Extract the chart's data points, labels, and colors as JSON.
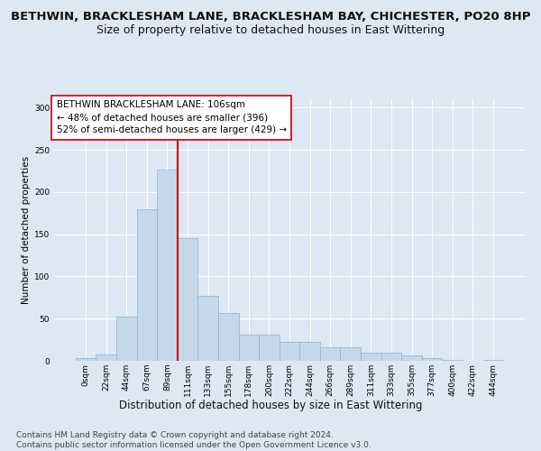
{
  "title": "BETHWIN, BRACKLESHAM LANE, BRACKLESHAM BAY, CHICHESTER, PO20 8HP",
  "subtitle": "Size of property relative to detached houses in East Wittering",
  "xlabel": "Distribution of detached houses by size in East Wittering",
  "ylabel": "Number of detached properties",
  "bar_color": "#c5d8ea",
  "bar_edge_color": "#8ab0cc",
  "background_color": "#dce8f4",
  "grid_color": "#ffffff",
  "fig_background": "#dce8f4",
  "bin_labels": [
    "0sqm",
    "22sqm",
    "44sqm",
    "67sqm",
    "89sqm",
    "111sqm",
    "133sqm",
    "155sqm",
    "178sqm",
    "200sqm",
    "222sqm",
    "244sqm",
    "266sqm",
    "289sqm",
    "311sqm",
    "333sqm",
    "355sqm",
    "377sqm",
    "400sqm",
    "422sqm",
    "444sqm"
  ],
  "bar_values": [
    3,
    7,
    52,
    180,
    227,
    145,
    77,
    57,
    31,
    31,
    22,
    22,
    16,
    16,
    10,
    10,
    6,
    3,
    1,
    0,
    1
  ],
  "property_line_x": 4.5,
  "property_line_color": "#cc0000",
  "annotation_text": "BETHWIN BRACKLESHAM LANE: 106sqm\n← 48% of detached houses are smaller (396)\n52% of semi-detached houses are larger (429) →",
  "annotation_box_color": "#ffffff",
  "annotation_box_edge": "#cc0000",
  "ylim": [
    0,
    310
  ],
  "yticks": [
    0,
    50,
    100,
    150,
    200,
    250,
    300
  ],
  "footnote": "Contains HM Land Registry data © Crown copyright and database right 2024.\nContains public sector information licensed under the Open Government Licence v3.0.",
  "title_fontsize": 9.5,
  "subtitle_fontsize": 9,
  "xlabel_fontsize": 8.5,
  "ylabel_fontsize": 7.5,
  "tick_fontsize": 6.5,
  "annot_fontsize": 7.5,
  "footnote_fontsize": 6.5
}
